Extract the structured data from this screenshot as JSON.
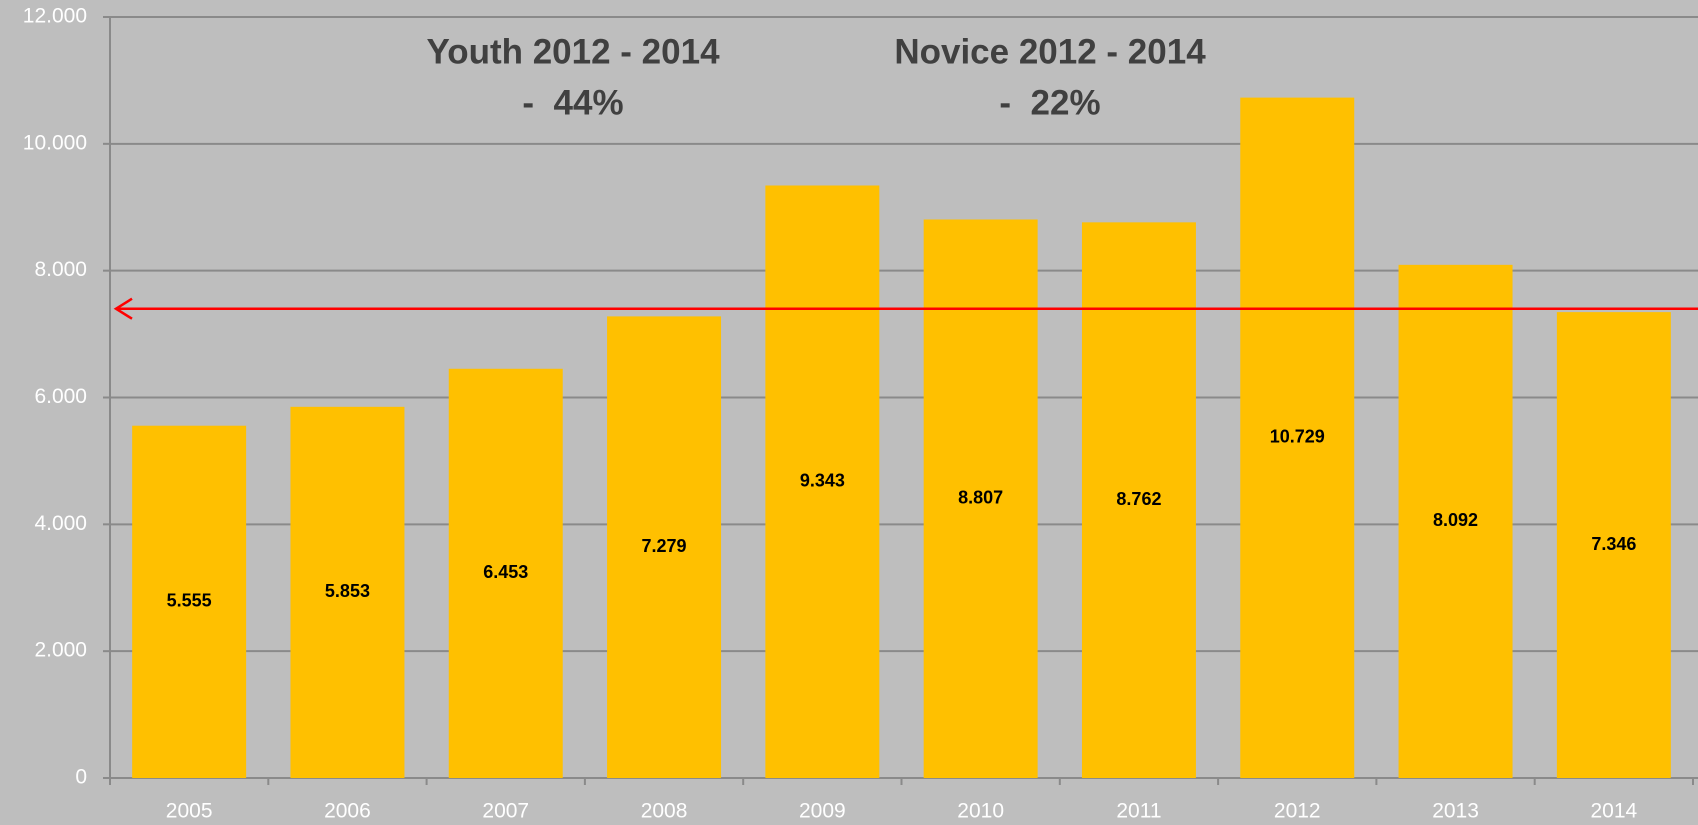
{
  "chart_data": {
    "type": "bar",
    "categories": [
      "2005",
      "2006",
      "2007",
      "2008",
      "2009",
      "2010",
      "2011",
      "2012",
      "2013",
      "2014"
    ],
    "values": [
      5555,
      5853,
      6453,
      7279,
      9343,
      8807,
      8762,
      10729,
      8092,
      7346
    ],
    "value_labels": [
      "5.555",
      "5.853",
      "6.453",
      "7.279",
      "9.343",
      "8.807",
      "8.762",
      "10.729",
      "8.092",
      "7.346"
    ],
    "color": "#ffc000",
    "ylim": [
      0,
      12000
    ],
    "yticks": [
      0,
      {
        "value": 2000,
        "label": "2.000"
      },
      {
        "value": 4000,
        "label": "4.000"
      },
      {
        "value": 6000,
        "label": "6.000"
      },
      {
        "value": 8000,
        "label": "8.000"
      },
      {
        "value": 10000,
        "label": "10.000"
      },
      {
        "value": 12000,
        "label": "12.000"
      }
    ],
    "grid": true,
    "annotations": [
      [
        "Youth 2012 - 2014",
        "-  44%"
      ],
      [
        "Novice 2012 - 2014",
        "-  22%"
      ]
    ],
    "reference_line": {
      "value": 7400,
      "color": "#ff0000"
    }
  }
}
